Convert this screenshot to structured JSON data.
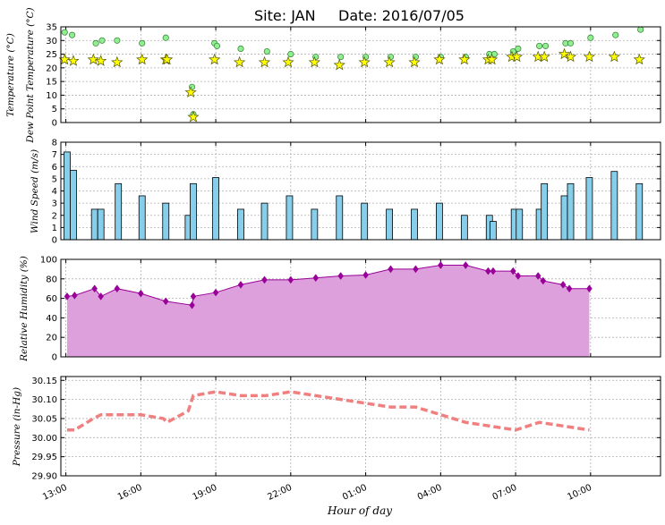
{
  "title": {
    "site_label": "Site: JAN",
    "date_label": "Date: 2016/07/05"
  },
  "xaxis": {
    "label": "Hour of day",
    "ticks": [
      "13:00",
      "16:00",
      "19:00",
      "22:00",
      "01:00",
      "04:00",
      "07:00",
      "10:00"
    ],
    "tick_hours": [
      0,
      3,
      6,
      9,
      12,
      15,
      18,
      21
    ],
    "range_hours": [
      -0.2,
      23.8
    ]
  },
  "colors": {
    "temperature": "#90ee90",
    "dewpoint": "#ffff00",
    "wind": "#87ceeb",
    "humidity_fill": "#dda0dd",
    "humidity_line": "#990099",
    "pressure": "#f08080"
  },
  "chart_data": [
    {
      "type": "scatter",
      "name": "temperature",
      "ylabel": "Temperature (°C)",
      "ylabel2": "Dew Point Temperature (°C)",
      "ylim": [
        0,
        35
      ],
      "yticks": [
        "0",
        "5",
        "10",
        "15",
        "20",
        "25",
        "30",
        "35"
      ],
      "series": [
        {
          "name": "",
          "marker": "circle",
          "x": [
            -0.05,
            0.25,
            1.2,
            1.45,
            2.05,
            3.05,
            4.0,
            5.05,
            5.1,
            5.95,
            6.05,
            7.0,
            8.05,
            9.0,
            10.0,
            11.0,
            12.0,
            13.0,
            14.0,
            15.0,
            16.0,
            16.95,
            17.15,
            17.9,
            18.1,
            18.95,
            19.2,
            20.0,
            20.2,
            21.0,
            22.0,
            23.0
          ],
          "y": [
            33,
            32,
            29,
            30,
            30,
            29,
            31,
            13,
            3,
            29,
            28,
            27,
            26,
            25,
            24,
            24,
            24,
            24,
            24,
            24,
            24,
            25,
            25,
            26,
            27,
            28,
            28,
            29,
            29,
            31,
            32,
            34
          ]
        },
        {
          "name": "",
          "marker": "star",
          "x": [
            -0.05,
            0.3,
            1.1,
            1.4,
            2.05,
            3.05,
            4.0,
            4.05,
            5.0,
            5.1,
            5.95,
            6.95,
            7.95,
            8.9,
            9.95,
            10.95,
            11.95,
            12.95,
            13.95,
            14.95,
            15.95,
            16.9,
            17.05,
            17.85,
            18.05,
            18.9,
            19.15,
            19.95,
            20.2,
            20.95,
            21.95,
            22.95
          ],
          "y": [
            23,
            22.5,
            23,
            22.5,
            22,
            23,
            23,
            23,
            11,
            2,
            23,
            22,
            22,
            22,
            22,
            21,
            22,
            22,
            22,
            23,
            23,
            23,
            23,
            24,
            24,
            24,
            24,
            25,
            24,
            24,
            24,
            23
          ]
        }
      ]
    },
    {
      "type": "bar",
      "name": "wind",
      "ylabel": "Wind Speed (m/s)",
      "ylim": [
        0,
        8
      ],
      "yticks": [
        "0",
        "1",
        "2",
        "3",
        "4",
        "5",
        "6",
        "7",
        "8"
      ],
      "x": [
        0.05,
        0.3,
        1.15,
        1.4,
        2.1,
        3.05,
        4.0,
        4.9,
        5.1,
        6.0,
        7.0,
        7.95,
        8.95,
        9.95,
        10.95,
        11.95,
        12.95,
        13.95,
        14.95,
        15.95,
        16.95,
        17.1,
        17.95,
        18.15,
        18.95,
        19.15,
        19.95,
        20.2,
        20.95,
        21.95,
        22.95
      ],
      "values": [
        7.2,
        5.7,
        2.5,
        2.5,
        4.6,
        3.6,
        3.0,
        2.0,
        4.6,
        5.1,
        2.5,
        3.0,
        3.6,
        2.5,
        3.6,
        3.0,
        2.5,
        2.5,
        3.0,
        2.0,
        2.0,
        1.5,
        2.5,
        2.5,
        2.5,
        4.6,
        3.6,
        4.6,
        5.1,
        5.6,
        4.6
      ]
    },
    {
      "type": "area",
      "name": "humidity",
      "ylabel": "Relative Humidity (%)",
      "ylim": [
        0,
        100
      ],
      "yticks": [
        "0",
        "20",
        "40",
        "60",
        "80",
        "100"
      ],
      "x": [
        0.05,
        0.35,
        1.15,
        1.4,
        2.05,
        3.0,
        4.0,
        5.05,
        5.1,
        6.0,
        7.0,
        7.95,
        9.0,
        10.0,
        11.0,
        12.0,
        13.0,
        14.0,
        15.0,
        16.0,
        16.9,
        17.1,
        17.9,
        18.1,
        18.9,
        19.1,
        19.9,
        20.15,
        20.95
      ],
      "values": [
        62,
        63,
        70,
        62,
        70,
        65,
        57,
        53,
        62,
        66,
        74,
        79,
        79,
        81,
        83,
        84,
        90,
        90,
        94,
        94,
        88,
        88,
        88,
        83,
        83,
        78,
        74,
        70,
        70
      ]
    },
    {
      "type": "line",
      "name": "pressure",
      "ylabel": "Pressure (in-Hg)",
      "ylim": [
        29.9,
        30.16
      ],
      "yticks": [
        "29.90",
        "29.95",
        "30.00",
        "30.05",
        "30.10",
        "30.15"
      ],
      "x": [
        0.05,
        0.35,
        1.1,
        1.4,
        2.05,
        3.0,
        3.9,
        4.05,
        4.9,
        5.1,
        6.0,
        7.0,
        8.0,
        9.0,
        10.0,
        11.0,
        12.0,
        13.0,
        14.0,
        15.0,
        16.0,
        17.0,
        18.0,
        18.95,
        19.95,
        20.95
      ],
      "values": [
        30.02,
        30.02,
        30.05,
        30.06,
        30.06,
        30.06,
        30.05,
        30.04,
        30.07,
        30.11,
        30.12,
        30.11,
        30.11,
        30.12,
        30.11,
        30.1,
        30.09,
        30.08,
        30.08,
        30.06,
        30.04,
        30.03,
        30.02,
        30.04,
        30.03,
        30.02
      ]
    }
  ]
}
